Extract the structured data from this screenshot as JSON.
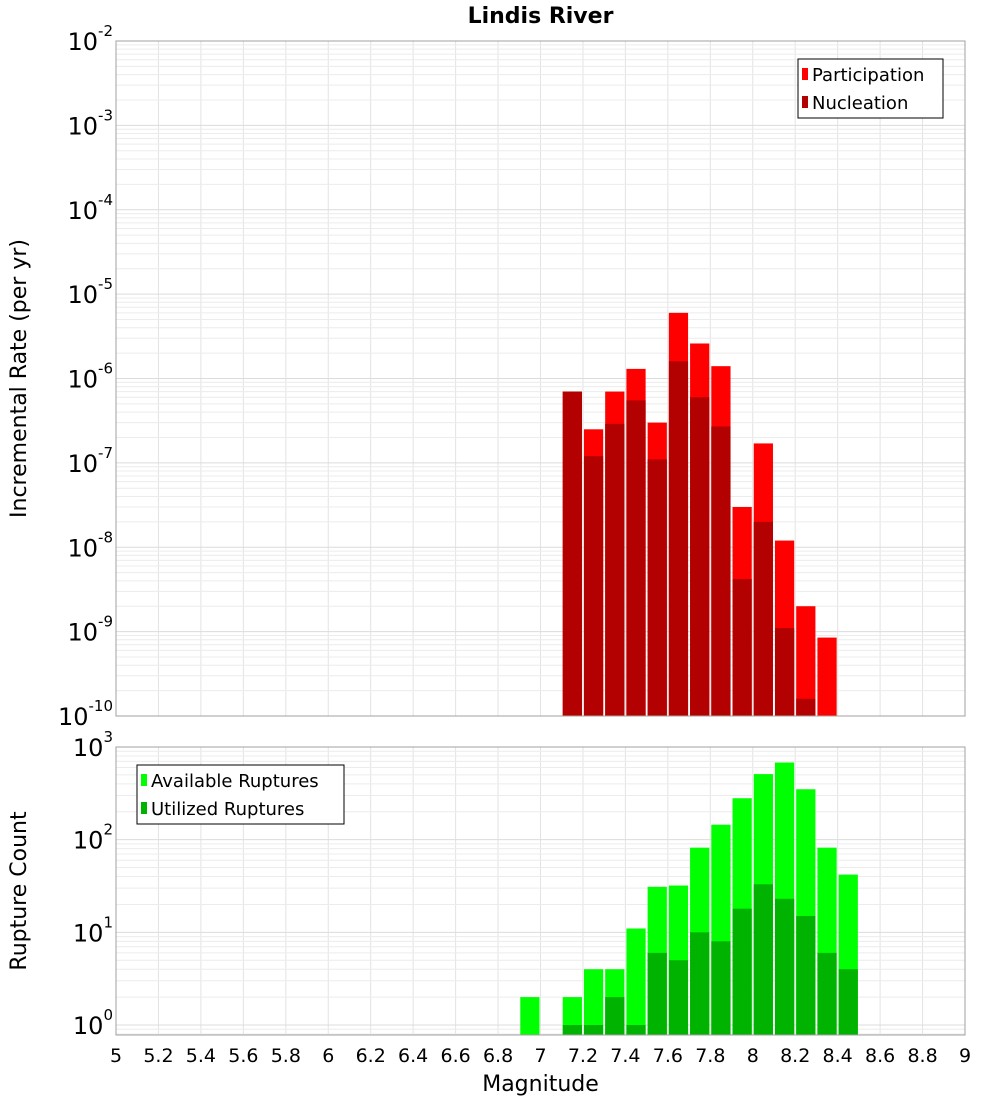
{
  "chart_data": [
    {
      "type": "bar",
      "title": "Lindis River",
      "xlabel": "",
      "ylabel": "Incremental Rate (per yr)",
      "yscale": "log",
      "xlim": [
        5,
        9
      ],
      "ylim": [
        1e-10,
        0.01
      ],
      "grid": true,
      "legend_position": "top-right",
      "y_ticks": [
        {
          "base": "10",
          "exp": "-10",
          "value": 1e-10
        },
        {
          "base": "10",
          "exp": "-9",
          "value": 1e-09
        },
        {
          "base": "10",
          "exp": "-8",
          "value": 1e-08
        },
        {
          "base": "10",
          "exp": "-7",
          "value": 1e-07
        },
        {
          "base": "10",
          "exp": "-6",
          "value": 1e-06
        },
        {
          "base": "10",
          "exp": "-5",
          "value": 1e-05
        },
        {
          "base": "10",
          "exp": "-4",
          "value": 0.0001
        },
        {
          "base": "10",
          "exp": "-3",
          "value": 0.001
        },
        {
          "base": "10",
          "exp": "-2",
          "value": 0.01
        }
      ],
      "x": [
        7.15,
        7.25,
        7.35,
        7.45,
        7.55,
        7.65,
        7.75,
        7.85,
        7.95,
        8.05,
        8.15,
        8.25,
        8.35
      ],
      "series": [
        {
          "name": "Participation",
          "color": "#ff0000",
          "values": [
            7e-07,
            2.5e-07,
            7e-07,
            1.3e-06,
            3e-07,
            6e-06,
            2.6e-06,
            1.4e-06,
            3e-08,
            1.7e-07,
            1.2e-08,
            2e-09,
            8.5e-10
          ]
        },
        {
          "name": "Nucleation",
          "color": "#b30000",
          "values": [
            7e-07,
            1.2e-07,
            2.9e-07,
            5.5e-07,
            1.1e-07,
            1.6e-06,
            6e-07,
            2.7e-07,
            4.2e-09,
            2e-08,
            1.1e-09,
            1.6e-10,
            null
          ]
        }
      ]
    },
    {
      "type": "bar",
      "title": "",
      "xlabel": "Magnitude",
      "ylabel": "Rupture Count",
      "yscale": "log",
      "xlim": [
        5,
        9
      ],
      "ylim": [
        0.78,
        1000
      ],
      "grid": true,
      "legend_position": "top-left",
      "x_ticks": [
        "5",
        "5.2",
        "5.4",
        "5.6",
        "5.8",
        "6",
        "6.2",
        "6.4",
        "6.6",
        "6.8",
        "7",
        "7.2",
        "7.4",
        "7.6",
        "7.8",
        "8",
        "8.2",
        "8.4",
        "8.6",
        "8.8",
        "9"
      ],
      "y_ticks": [
        {
          "base": "10",
          "exp": "0",
          "value": 1
        },
        {
          "base": "10",
          "exp": "1",
          "value": 10
        },
        {
          "base": "10",
          "exp": "2",
          "value": 100
        },
        {
          "base": "10",
          "exp": "3",
          "value": 1000
        }
      ],
      "x": [
        6.95,
        7.15,
        7.25,
        7.35,
        7.45,
        7.55,
        7.65,
        7.75,
        7.85,
        7.95,
        8.05,
        8.15,
        8.25,
        8.35,
        8.45
      ],
      "series": [
        {
          "name": "Available Ruptures",
          "color": "#00ff00",
          "values": [
            2,
            2,
            4,
            4,
            11,
            31,
            32,
            82,
            145,
            280,
            510,
            680,
            350,
            82,
            42
          ]
        },
        {
          "name": "Utilized Ruptures",
          "color": "#00b300",
          "values": [
            null,
            1,
            1,
            2,
            1,
            6,
            5,
            10,
            8,
            18,
            33,
            23,
            15,
            6,
            4
          ]
        }
      ]
    }
  ]
}
